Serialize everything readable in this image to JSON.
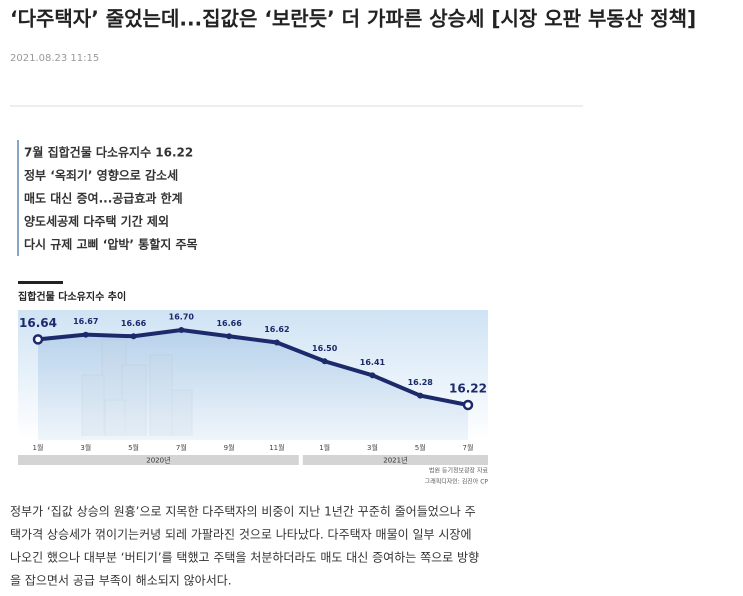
{
  "article": {
    "title": "‘다주택자’ 줄었는데...집값은 ‘보란듯’ 더 가파른 상승세 [시장 오판 부동산 정책]",
    "date": "2021.08.23 11:15",
    "summary": [
      "7월 집합건물 다소유지수 16.22",
      "정부 ‘옥죄기’ 영향으로 감소세",
      "매도 대신 증여...공급효과 한계",
      "양도세공제 다주택 기간 제외",
      "다시 규제 고삐 ‘압박’ 통할지 주목"
    ],
    "body": [
      "정부가 ‘집값 상승의 원흉’으로 지목한 다주택자의 비중이 지난 1년간 꾸준히 줄어들었으나 주",
      "택가격 상승세가 꺾이기는커녕 되레 가팔라진 것으로 나타났다. 다주택자 매물이 일부 시장에",
      "나오긴 했으나 대부분 ‘버티기’를 택했고 주택을 처분하더라도 매도 대신 증여하는 쪽으로 방향",
      "을 잡으면서 공급 부족이 해소되지 않아서다."
    ]
  },
  "chart_data": {
    "type": "line",
    "title": "집합건물 다소유지수 추이",
    "categories": [
      "1월",
      "3월",
      "5월",
      "7월",
      "9월",
      "11월",
      "1월",
      "3월",
      "5월",
      "7월"
    ],
    "x_groups": [
      "2020년",
      "2021년"
    ],
    "series": [
      {
        "name": "집합건물 다소유지수",
        "color": "#1c2a6b",
        "values": [
          16.64,
          16.67,
          16.66,
          16.7,
          16.66,
          16.62,
          16.5,
          16.41,
          16.28,
          16.22
        ],
        "value_labels": [
          "16.64",
          "16.67",
          "16.66",
          "16.70",
          "16.66",
          "16.62",
          "16.50",
          "16.41",
          "16.28",
          "16.22"
        ]
      }
    ],
    "source": [
      "법원 등기정보광장 자료",
      "그래픽디자인: 김진아 CP"
    ]
  }
}
